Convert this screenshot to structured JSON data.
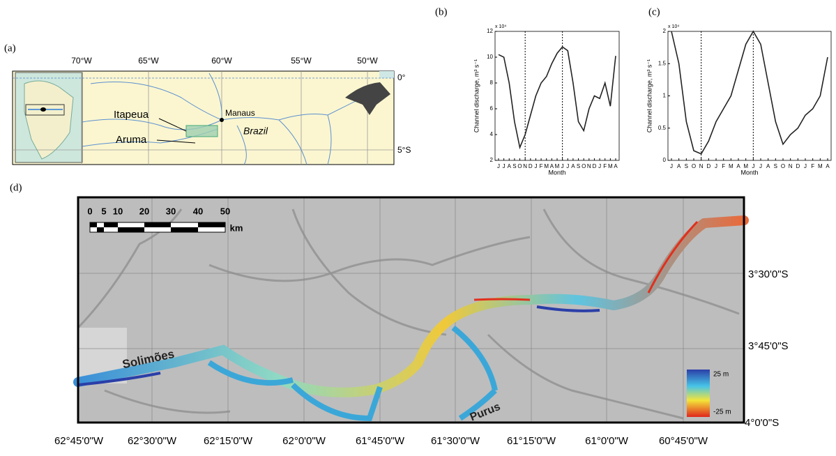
{
  "panel_labels": {
    "a": "(a)",
    "b": "(b)",
    "c": "(c)",
    "d": "(d)"
  },
  "map_a": {
    "lon_ticks": [
      "70°W",
      "65°W",
      "60°W",
      "55°W",
      "50°W"
    ],
    "lat_ticks": [
      "0°",
      "5°S"
    ],
    "places": {
      "itapeua": "Itapeua",
      "aruma": "Aruma",
      "manaus": "Manaus",
      "brazil": "Brazil"
    }
  },
  "chart_data": [
    {
      "type": "line",
      "multiplier": "x 10⁴",
      "y_label": "Channel discharge, m³ s⁻¹",
      "x_label": "Month",
      "categories": [
        "J",
        "J",
        "A",
        "S",
        "O",
        "N",
        "D",
        "J",
        "F",
        "M",
        "A",
        "M",
        "J",
        "J",
        "A",
        "S",
        "O",
        "N",
        "D",
        "J",
        "F",
        "M",
        "A"
      ],
      "values": [
        10.2,
        10.0,
        8.0,
        5.0,
        3.0,
        4.0,
        5.5,
        7.0,
        8.0,
        8.5,
        9.5,
        10.3,
        10.8,
        10.5,
        8.0,
        5.0,
        4.3,
        6.0,
        7.0,
        6.8,
        8.0,
        6.2,
        10.1
      ],
      "vlines": [
        5,
        12
      ],
      "color": "#222222",
      "ylim": [
        2,
        12
      ],
      "yticks": [
        2,
        4,
        6,
        8,
        10,
        12
      ]
    },
    {
      "type": "line",
      "multiplier": "x 10⁴",
      "y_label": "Channel discharge, m³ s⁻¹",
      "x_label": "Month",
      "categories": [
        "J",
        "A",
        "S",
        "O",
        "N",
        "D",
        "J",
        "F",
        "M",
        "A",
        "M",
        "J",
        "J",
        "A",
        "S",
        "O",
        "N",
        "D",
        "J",
        "F",
        "M",
        "A"
      ],
      "values": [
        2.0,
        1.5,
        0.6,
        0.15,
        0.1,
        0.3,
        0.6,
        0.8,
        1.0,
        1.4,
        1.8,
        2.0,
        1.8,
        1.2,
        0.6,
        0.25,
        0.4,
        0.5,
        0.7,
        0.8,
        1.0,
        1.6
      ],
      "vlines": [
        4,
        11
      ],
      "color": "#222222",
      "ylim": [
        0,
        2
      ],
      "yticks": [
        0,
        0.5,
        1,
        1.5,
        2
      ]
    }
  ],
  "map_d": {
    "scale": [
      "0",
      "5",
      "10",
      "20",
      "30",
      "40",
      "50"
    ],
    "scale_unit": "km",
    "rivers": {
      "solimoes": "Solimões",
      "purus": "Purus"
    },
    "legend": {
      "high": "25 m",
      "low": "-25 m"
    },
    "lon_ticks": [
      "62°45'0\"W",
      "62°30'0\"W",
      "62°15'0\"W",
      "62°0'0\"W",
      "61°45'0\"W",
      "61°30'0\"W",
      "61°15'0\"W",
      "61°0'0\"W",
      "60°45'0\"W"
    ],
    "lat_ticks": [
      "3°30'0\"S",
      "3°45'0\"S",
      "4°0'0\"S"
    ]
  }
}
